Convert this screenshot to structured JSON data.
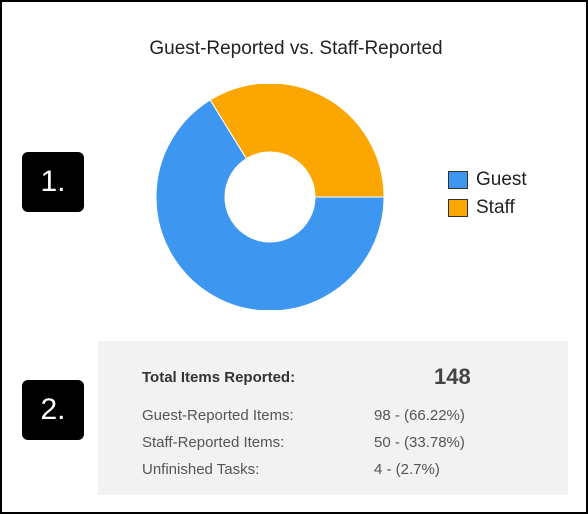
{
  "chart_data": {
    "type": "pie",
    "title": "Guest-Reported vs. Staff-Reported",
    "categories": [
      "Guest",
      "Staff"
    ],
    "values": [
      98,
      50
    ],
    "colors": [
      "#3d97f1",
      "#fca602"
    ],
    "hole": true,
    "legend_position": "right"
  },
  "badges": [
    "1.",
    "2."
  ],
  "summary": {
    "total_label": "Total Items Reported:",
    "total_value": "148",
    "rows": [
      {
        "label": "Guest-Reported Items:",
        "value": "98 - (66.22%)"
      },
      {
        "label": "Staff-Reported Items:",
        "value": "50 - (33.78%)"
      },
      {
        "label": "Unfinished Tasks:",
        "value": "4 - (2.7%)"
      }
    ]
  }
}
